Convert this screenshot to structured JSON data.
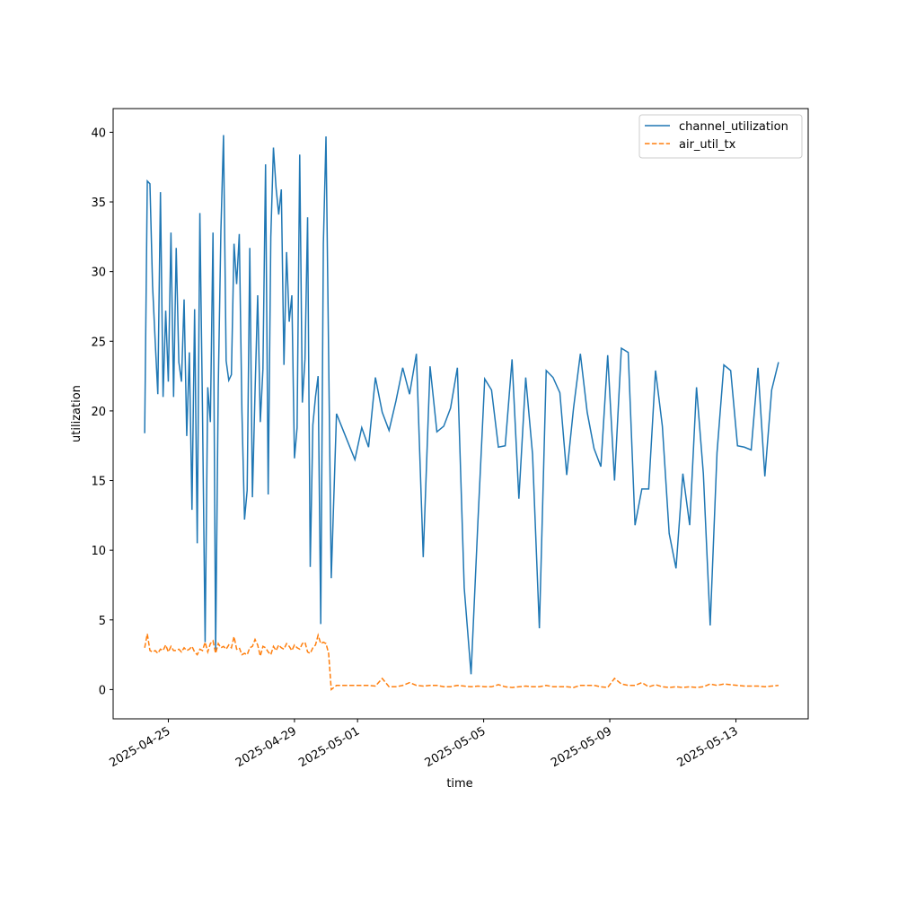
{
  "chart_data": {
    "type": "line",
    "x_label": "time",
    "y_label": "utilization",
    "x": [
      "2025-04-24T06:00",
      "2025-04-24T08:00",
      "2025-04-24T10:00",
      "2025-04-24T12:00",
      "2025-04-24T14:00",
      "2025-04-24T16:00",
      "2025-04-24T18:00",
      "2025-04-24T20:00",
      "2025-04-24T22:00",
      "2025-04-25T00:00",
      "2025-04-25T02:00",
      "2025-04-25T04:00",
      "2025-04-25T06:00",
      "2025-04-25T08:00",
      "2025-04-25T10:00",
      "2025-04-25T12:00",
      "2025-04-25T14:00",
      "2025-04-25T16:00",
      "2025-04-25T18:00",
      "2025-04-25T20:00",
      "2025-04-25T22:00",
      "2025-04-26T00:00",
      "2025-04-26T02:00",
      "2025-04-26T04:00",
      "2025-04-26T06:00",
      "2025-04-26T08:00",
      "2025-04-26T10:00",
      "2025-04-26T12:00",
      "2025-04-26T14:00",
      "2025-04-26T16:00",
      "2025-04-26T18:00",
      "2025-04-26T20:00",
      "2025-04-26T22:00",
      "2025-04-27T00:00",
      "2025-04-27T02:00",
      "2025-04-27T04:00",
      "2025-04-27T06:00",
      "2025-04-27T08:00",
      "2025-04-27T10:00",
      "2025-04-27T12:00",
      "2025-04-27T14:00",
      "2025-04-27T16:00",
      "2025-04-27T18:00",
      "2025-04-27T20:00",
      "2025-04-27T22:00",
      "2025-04-28T00:00",
      "2025-04-28T02:00",
      "2025-04-28T04:00",
      "2025-04-28T06:00",
      "2025-04-28T08:00",
      "2025-04-28T10:00",
      "2025-04-28T12:00",
      "2025-04-28T14:00",
      "2025-04-28T16:00",
      "2025-04-28T18:00",
      "2025-04-28T20:00",
      "2025-04-28T22:00",
      "2025-04-29T00:00",
      "2025-04-29T02:00",
      "2025-04-29T04:00",
      "2025-04-29T06:00",
      "2025-04-29T08:00",
      "2025-04-29T10:00",
      "2025-04-29T12:00",
      "2025-04-29T14:00",
      "2025-04-29T16:00",
      "2025-04-29T18:00",
      "2025-04-29T20:00",
      "2025-04-29T22:00",
      "2025-04-30T00:00",
      "2025-04-30T02:00",
      "2025-04-30T04:00",
      "2025-04-30T08:00",
      "2025-04-30T22:00",
      "2025-05-01T03:12",
      "2025-05-01T08:24",
      "2025-05-01T13:36",
      "2025-05-01T18:48",
      "2025-05-02T00:00",
      "2025-05-02T05:12",
      "2025-05-02T10:24",
      "2025-05-02T15:36",
      "2025-05-02T20:48",
      "2025-05-03T02:00",
      "2025-05-03T07:12",
      "2025-05-03T12:24",
      "2025-05-03T17:36",
      "2025-05-03T22:48",
      "2025-05-04T04:00",
      "2025-05-04T09:12",
      "2025-05-04T14:24",
      "2025-05-04T19:36",
      "2025-05-05T00:48",
      "2025-05-05T06:00",
      "2025-05-05T11:12",
      "2025-05-05T16:24",
      "2025-05-05T21:36",
      "2025-05-06T02:48",
      "2025-05-06T08:00",
      "2025-05-06T13:12",
      "2025-05-06T18:24",
      "2025-05-06T23:36",
      "2025-05-07T04:48",
      "2025-05-07T10:00",
      "2025-05-07T15:12",
      "2025-05-07T20:24",
      "2025-05-08T01:36",
      "2025-05-08T06:48",
      "2025-05-08T12:00",
      "2025-05-08T17:12",
      "2025-05-08T22:24",
      "2025-05-09T03:36",
      "2025-05-09T08:48",
      "2025-05-09T14:00",
      "2025-05-09T19:12",
      "2025-05-10T00:24",
      "2025-05-10T05:36",
      "2025-05-10T10:48",
      "2025-05-10T16:00",
      "2025-05-10T21:12",
      "2025-05-11T02:24",
      "2025-05-11T07:36",
      "2025-05-11T12:48",
      "2025-05-11T18:00",
      "2025-05-11T23:12",
      "2025-05-12T04:24",
      "2025-05-12T09:36",
      "2025-05-12T14:48",
      "2025-05-12T20:00",
      "2025-05-13T01:12",
      "2025-05-13T06:24",
      "2025-05-13T11:36",
      "2025-05-13T16:48",
      "2025-05-13T22:00",
      "2025-05-14T03:12",
      "2025-05-14T08:24"
    ],
    "series": [
      {
        "name": "channel_utilization",
        "color": "#1f77b4",
        "linestyle": "solid",
        "values": [
          18.4,
          36.5,
          36.3,
          29,
          25,
          21.2,
          35.7,
          21,
          27.2,
          22.1,
          32.8,
          21,
          31.7,
          23.5,
          22.1,
          28,
          18.2,
          24.2,
          12.9,
          27.3,
          10.5,
          34.2,
          20,
          3.4,
          21.7,
          19.2,
          32.8,
          2.8,
          21.7,
          32.9,
          39.8,
          23.6,
          22.2,
          22.6,
          32,
          29.1,
          32.7,
          20,
          12.2,
          14.3,
          31.7,
          13.8,
          21.4,
          28.3,
          19.2,
          23,
          37.7,
          14,
          32.5,
          38.9,
          36,
          34.1,
          35.9,
          23.3,
          31.4,
          26.4,
          28.3,
          16.6,
          18.8,
          38.4,
          20.6,
          23.7,
          33.9,
          8.8,
          19,
          21,
          22.5,
          4.7,
          32,
          39.7,
          24,
          8,
          19.8,
          16.5,
          18.8,
          17.4,
          22.4,
          19.9,
          18.6,
          20.7,
          23.1,
          21.2,
          24.1,
          9.5,
          23.2,
          18.5,
          18.9,
          20.2,
          23.1,
          7.3,
          1.1,
          12,
          22.3,
          21.5,
          17.4,
          17.5,
          23.7,
          13.7,
          22.4,
          16.9,
          4.4,
          22.9,
          22.4,
          21.3,
          15.4,
          20.2,
          24.1,
          19.9,
          17.3,
          16,
          24,
          15,
          24.5,
          24.2,
          11.8,
          14.4,
          14.4,
          22.9,
          18.9,
          11.2,
          8.7,
          15.5,
          11.8,
          21.7,
          15.5,
          4.6,
          17,
          23.3,
          22.9,
          17.5,
          17.4,
          17.2,
          23.1,
          15.3,
          21.5,
          23.5
        ]
      },
      {
        "name": "air_util_tx",
        "color": "#ff7f0e",
        "linestyle": "dashed",
        "values": [
          3.0,
          4.0,
          2.8,
          2.7,
          2.8,
          2.6,
          2.9,
          2.8,
          3.2,
          2.7,
          3.1,
          2.8,
          2.8,
          2.9,
          2.7,
          3.0,
          2.8,
          2.9,
          3.1,
          2.7,
          2.5,
          2.9,
          2.8,
          3.4,
          2.7,
          3.3,
          3.5,
          2.6,
          3.3,
          3.0,
          3.1,
          2.9,
          3.2,
          3.0,
          3.8,
          2.9,
          3.0,
          2.5,
          2.6,
          2.5,
          3.0,
          3.1,
          3.6,
          3.2,
          2.4,
          3.1,
          3.0,
          2.7,
          2.5,
          3.1,
          2.8,
          3.2,
          3.0,
          2.9,
          3.3,
          3.1,
          2.8,
          3.2,
          3.0,
          2.9,
          3.3,
          3.4,
          2.7,
          2.6,
          3.0,
          3.2,
          3.9,
          3.3,
          3.4,
          3.3,
          2.6,
          0.0,
          0.3,
          0.3,
          0.3,
          0.3,
          0.25,
          0.8,
          0.2,
          0.2,
          0.3,
          0.5,
          0.3,
          0.25,
          0.3,
          0.3,
          0.2,
          0.2,
          0.3,
          0.25,
          0.2,
          0.25,
          0.2,
          0.2,
          0.35,
          0.2,
          0.15,
          0.2,
          0.25,
          0.2,
          0.2,
          0.3,
          0.2,
          0.2,
          0.2,
          0.15,
          0.3,
          0.3,
          0.3,
          0.2,
          0.15,
          0.8,
          0.4,
          0.3,
          0.3,
          0.5,
          0.2,
          0.35,
          0.2,
          0.15,
          0.2,
          0.15,
          0.2,
          0.15,
          0.2,
          0.4,
          0.3,
          0.4,
          0.35,
          0.3,
          0.25,
          0.25,
          0.25,
          0.2,
          0.25,
          0.3
        ]
      }
    ],
    "xlim": [
      "2025-04-23T06:00",
      "2025-05-15T07:00"
    ],
    "xticks": [
      "2025-04-25",
      "2025-04-29",
      "2025-05-01",
      "2025-05-05",
      "2025-05-09",
      "2025-05-13"
    ],
    "ylim": [
      -2.1,
      41.7
    ],
    "yticks": [
      0,
      5,
      10,
      15,
      20,
      25,
      30,
      35,
      40
    ],
    "legend": "upper right"
  }
}
